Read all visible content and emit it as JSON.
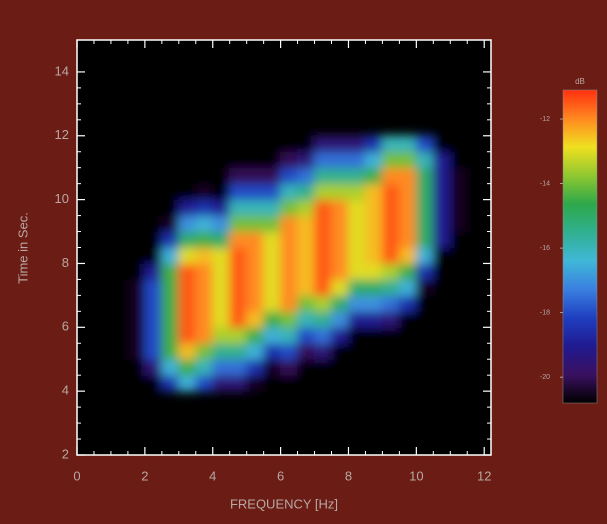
{
  "chart_data": {
    "type": "heatmap",
    "xlabel": "FREQUENCY [Hz]",
    "ylabel": "Time in Sec.",
    "xlim": [
      0,
      12.2
    ],
    "ylim": [
      2,
      15
    ],
    "xticks": [
      0,
      2,
      4,
      6,
      8,
      10,
      12
    ],
    "yticks": [
      2,
      4,
      6,
      8,
      10,
      12,
      14
    ],
    "x": [
      1.75,
      2.25,
      2.75,
      3.25,
      3.75,
      4.25,
      4.75,
      5.25,
      5.75,
      6.25,
      6.75,
      7.25,
      7.75,
      8.25,
      8.75,
      9.25,
      9.75,
      10.25,
      10.75,
      11.25
    ],
    "y": [
      4.25,
      4.75,
      5.25,
      5.75,
      6.25,
      6.75,
      7.25,
      7.75,
      8.25,
      8.75,
      9.25,
      9.75,
      10.25,
      10.75,
      11.25,
      11.75
    ],
    "z": [
      [
        -21,
        -21,
        -20.5,
        -20.5,
        -20.5,
        -20.5,
        -20.5,
        -21,
        -21,
        -21,
        -21,
        -21,
        -21,
        -21,
        -21,
        -21
      ],
      [
        -21,
        -19.5,
        -18,
        -18,
        -18,
        -18,
        -18,
        -19,
        -21,
        -21,
        -21,
        -21,
        -21,
        -21,
        -21,
        -21
      ],
      [
        -18.5,
        -16.5,
        -14.5,
        -14.5,
        -14.5,
        -14.5,
        -14.5,
        -14.5,
        -16.5,
        -18.5,
        -20.5,
        -21,
        -21,
        -21,
        -21,
        -21
      ],
      [
        -16.5,
        -14.5,
        -12.5,
        -11.5,
        -11.5,
        -11.5,
        -11.5,
        -11.5,
        -13,
        -15,
        -17,
        -19,
        -21,
        -21,
        -21,
        -21
      ],
      [
        -18,
        -16,
        -14,
        -12,
        -12,
        -12,
        -12,
        -12,
        -12.5,
        -14.5,
        -16.5,
        -18.5,
        -20.5,
        -21,
        -21,
        -21
      ],
      [
        -19.5,
        -17.5,
        -15.5,
        -13.5,
        -13,
        -13,
        -13,
        -13,
        -13,
        -15,
        -17,
        -19,
        -21,
        -21,
        -21,
        -21
      ],
      [
        -19.5,
        -17.5,
        -15.5,
        -13.5,
        -11.5,
        -11.5,
        -11.5,
        -11.5,
        -11.5,
        -12,
        -14,
        -16,
        -18,
        -20,
        -21,
        -21
      ],
      [
        -20.5,
        -18.5,
        -16.5,
        -14.5,
        -12.5,
        -12,
        -12,
        -12,
        -12,
        -12,
        -14,
        -16,
        -18,
        -20,
        -21,
        -21
      ],
      [
        -21,
        -20.5,
        -18.5,
        -16.5,
        -14.5,
        -13,
        -13,
        -13,
        -13,
        -13,
        -14,
        -16,
        -18,
        -20,
        -21,
        -21
      ],
      [
        -21,
        -20,
        -18,
        -16,
        -14,
        -12,
        -12,
        -12,
        -12,
        -12,
        -12,
        -14,
        -16,
        -18,
        -20,
        -21
      ],
      [
        -21,
        -21,
        -20,
        -18,
        -16,
        -14,
        -12.5,
        -12.5,
        -12.5,
        -12.5,
        -12.5,
        -13.5,
        -15.5,
        -17.5,
        -19.5,
        -21
      ],
      [
        -21,
        -21,
        -19.5,
        -17.5,
        -15.5,
        -13.5,
        -11.5,
        -11.5,
        -11.5,
        -11.5,
        -11.5,
        -11.5,
        -13.5,
        -15.5,
        -17.5,
        -19.5
      ],
      [
        -21,
        -21,
        -21,
        -19,
        -17,
        -15,
        -13,
        -12,
        -12,
        -12,
        -12,
        -12,
        -13.5,
        -15.5,
        -17.5,
        -19.5
      ],
      [
        -21,
        -21,
        -21,
        -21,
        -19,
        -17,
        -15,
        -13,
        -13,
        -13,
        -13,
        -13,
        -13.5,
        -15.5,
        -17.5,
        -19.5
      ],
      [
        -21,
        -21,
        -21,
        -21,
        -19,
        -17,
        -15,
        -13,
        -12.5,
        -12.5,
        -12.5,
        -12.5,
        -12.5,
        -14.5,
        -16.5,
        -18.5
      ],
      [
        -21,
        -21,
        -21,
        -21,
        -19.5,
        -17.5,
        -15.5,
        -13.5,
        -11.5,
        -11.5,
        -11.5,
        -11.5,
        -11.5,
        -12,
        -14,
        -16
      ],
      [
        -21,
        -21,
        -21,
        -21,
        -21,
        -18.5,
        -16.5,
        -14.5,
        -12.5,
        -12,
        -12,
        -12,
        -12,
        -12,
        -14,
        -16
      ],
      [
        -21,
        -21,
        -21,
        -21,
        -21,
        -21,
        -20.5,
        -18.5,
        -16.5,
        -15,
        -15,
        -15,
        -15,
        -15,
        -16,
        -18
      ],
      [
        -21,
        -21,
        -21,
        -21,
        -21,
        -21,
        -21,
        -21,
        -21,
        -19,
        -19,
        -19,
        -19,
        -19,
        -19,
        -21
      ],
      [
        -21,
        -21,
        -21,
        -21,
        -21,
        -21,
        -21,
        -21,
        -21,
        -21,
        -20.5,
        -20.5,
        -20.5,
        -20.5,
        -21,
        -21
      ]
    ],
    "clim": [
      -20.8,
      -11.1
    ],
    "colormap": [
      "#000000",
      "#3a1060",
      "#201a90",
      "#1f3fc0",
      "#3a80e0",
      "#40b8d8",
      "#30b090",
      "#2ea84a",
      "#90c830",
      "#f0e020",
      "#ff8820",
      "#ff3010"
    ],
    "colorbar_label": "dB",
    "cticks": [
      -12,
      -14,
      -16,
      -18,
      -20
    ]
  }
}
